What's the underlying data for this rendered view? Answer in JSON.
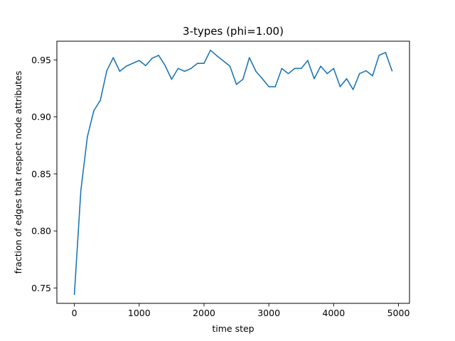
{
  "chart_data": {
    "type": "line",
    "title": "3-types (phi=1.00)",
    "xlabel": "time step",
    "ylabel": "fraction of edges that respect node attributes",
    "xlim": [
      -270,
      5170
    ],
    "ylim": [
      0.7365,
      0.9664
    ],
    "xticks": [
      0,
      1000,
      2000,
      3000,
      4000,
      5000
    ],
    "xtick_labels": [
      "0",
      "1000",
      "2000",
      "3000",
      "4000",
      "5000"
    ],
    "yticks": [
      0.75,
      0.8,
      0.85,
      0.9,
      0.95
    ],
    "ytick_labels": [
      "0.75",
      "0.80",
      "0.85",
      "0.90",
      "0.95"
    ],
    "grid": false,
    "series": [
      {
        "color": "#1f77b4",
        "x": [
          0,
          100,
          200,
          300,
          400,
          500,
          600,
          700,
          800,
          900,
          1000,
          1100,
          1200,
          1300,
          1400,
          1500,
          1600,
          1700,
          1800,
          1900,
          2000,
          2100,
          2200,
          2300,
          2400,
          2500,
          2600,
          2700,
          2800,
          2900,
          3000,
          3100,
          3200,
          3300,
          3400,
          3500,
          3600,
          3700,
          3800,
          3900,
          4000,
          4100,
          4200,
          4300,
          4400,
          4500,
          4600,
          4700,
          4800,
          4900
        ],
        "values": [
          0.7445,
          0.8355,
          0.8825,
          0.9055,
          0.9145,
          0.9405,
          0.952,
          0.94,
          0.9445,
          0.947,
          0.9495,
          0.945,
          0.9515,
          0.954,
          0.945,
          0.933,
          0.9425,
          0.94,
          0.9425,
          0.947,
          0.947,
          0.9585,
          0.9535,
          0.949,
          0.9445,
          0.9285,
          0.933,
          0.952,
          0.94,
          0.9335,
          0.9265,
          0.9265,
          0.9425,
          0.938,
          0.9425,
          0.9425,
          0.9495,
          0.9335,
          0.9445,
          0.938,
          0.9425,
          0.9265,
          0.9335,
          0.924,
          0.938,
          0.9405,
          0.936,
          0.954,
          0.9565,
          0.9405
        ]
      }
    ]
  }
}
